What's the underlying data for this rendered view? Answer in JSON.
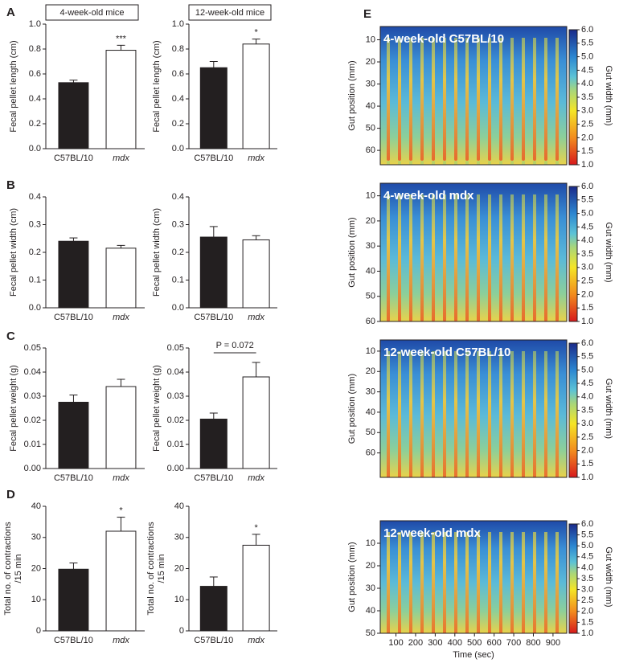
{
  "chart_data": [
    {
      "type": "bar",
      "panel": "A",
      "group": "4-week-old mice",
      "ylabel": "Fecal pellet length (cm)",
      "categories": [
        "C57BL/10",
        "mdx"
      ],
      "values": [
        0.53,
        0.79
      ],
      "errors": [
        0.02,
        0.04
      ],
      "colors": [
        "#231f20",
        "#ffffff"
      ],
      "annotation": "***",
      "ylim": [
        0,
        1
      ],
      "yticks": [
        {
          "value": 0,
          "label": "0.0"
        },
        0.2,
        0.4,
        0.6,
        0.8,
        {
          "value": 1,
          "label": "1.0"
        }
      ]
    },
    {
      "type": "bar",
      "group": "12-week-old mice",
      "ylabel": "Fecal pellet length (cm)",
      "categories": [
        "C57BL/10",
        "mdx"
      ],
      "values": [
        0.65,
        0.84
      ],
      "errors": [
        0.05,
        0.04
      ],
      "colors": [
        "#231f20",
        "#ffffff"
      ],
      "annotation": "*",
      "ylim": [
        0,
        1
      ],
      "yticks": [
        {
          "value": 0,
          "label": "0.0"
        },
        0.2,
        0.4,
        0.6,
        0.8,
        {
          "value": 1,
          "label": "1.0"
        }
      ]
    },
    {
      "type": "bar",
      "panel": "B",
      "ylabel": "Fecal pellet width (cm)",
      "categories": [
        "C57BL/10",
        "mdx"
      ],
      "values": [
        0.24,
        0.215
      ],
      "errors": [
        0.012,
        0.01
      ],
      "colors": [
        "#231f20",
        "#ffffff"
      ],
      "ylim": [
        0,
        0.4
      ],
      "yticks": [
        {
          "value": 0,
          "label": "0.0"
        },
        0.1,
        0.2,
        0.3,
        0.4
      ]
    },
    {
      "type": "bar",
      "ylabel": "Fecal pellet width (cm)",
      "categories": [
        "C57BL/10",
        "mdx"
      ],
      "values": [
        0.255,
        0.245
      ],
      "errors": [
        0.038,
        0.015
      ],
      "colors": [
        "#231f20",
        "#ffffff"
      ],
      "ylim": [
        0,
        0.4
      ],
      "yticks": [
        {
          "value": 0,
          "label": "0.0"
        },
        0.1,
        0.2,
        0.3,
        0.4
      ]
    },
    {
      "type": "bar",
      "panel": "C",
      "ylabel": "Fecal pellet weight (g)",
      "categories": [
        "C57BL/10",
        "mdx"
      ],
      "values": [
        0.0275,
        0.034
      ],
      "errors": [
        0.003,
        0.003
      ],
      "colors": [
        "#231f20",
        "#ffffff"
      ],
      "ylim": [
        0,
        0.05
      ],
      "yticks": [
        {
          "value": 0,
          "label": "0.00"
        },
        0.01,
        0.02,
        0.03,
        0.04,
        0.05
      ]
    },
    {
      "type": "bar",
      "ylabel": "Fecal pellet weight (g)",
      "categories": [
        "C57BL/10",
        "mdx"
      ],
      "values": [
        0.0205,
        0.038
      ],
      "errors": [
        0.0025,
        0.006
      ],
      "colors": [
        "#231f20",
        "#ffffff"
      ],
      "bracket_annotation": "P = 0.072",
      "ylim": [
        0,
        0.05
      ],
      "yticks": [
        {
          "value": 0,
          "label": "0.00"
        },
        0.01,
        0.02,
        0.03,
        0.04,
        0.05
      ]
    },
    {
      "type": "bar",
      "panel": "D",
      "ylabel": [
        "Total no. of contractions",
        "/15 min"
      ],
      "categories": [
        "C57BL/10",
        "mdx"
      ],
      "values": [
        19.8,
        32
      ],
      "errors": [
        2,
        4.5
      ],
      "colors": [
        "#231f20",
        "#ffffff"
      ],
      "annotation": "*",
      "ylim": [
        0,
        40
      ],
      "yticks": [
        0,
        10,
        20,
        30,
        40
      ]
    },
    {
      "type": "bar",
      "ylabel": [
        "Total no. of contractions",
        "/15 min"
      ],
      "categories": [
        "C57BL/10",
        "mdx"
      ],
      "values": [
        14.3,
        27.5
      ],
      "errors": [
        3,
        3.5
      ],
      "colors": [
        "#231f20",
        "#ffffff"
      ],
      "annotation": "*",
      "ylim": [
        0,
        40
      ],
      "yticks": [
        0,
        10,
        20,
        30,
        40
      ]
    },
    {
      "type": "heatmap",
      "panel": "E",
      "title": "4-week-old C57BL/10",
      "ylabel": "Gut position (mm)",
      "colorbar_label": "Gut width (mm)",
      "ylim": [
        4,
        66.5
      ],
      "yticks": [
        10,
        20,
        30,
        40,
        50,
        60
      ],
      "clim": [
        1,
        6
      ],
      "cticks": [
        {
          "value": 1,
          "label": "1.0"
        },
        1.5,
        {
          "value": 2,
          "label": "2.0"
        },
        2.5,
        {
          "value": 3,
          "label": "3.0"
        },
        3.5,
        {
          "value": 4,
          "label": "4.0"
        },
        4.5,
        {
          "value": 5,
          "label": "5.0"
        },
        5.5,
        {
          "value": 6,
          "label": "6.0"
        }
      ]
    },
    {
      "type": "heatmap",
      "title": "4-week-old mdx",
      "ylabel": "Gut position (mm)",
      "colorbar_label": "Gut width (mm)",
      "ylim": [
        5,
        60
      ],
      "yticks": [
        10,
        20,
        30,
        40,
        50,
        60
      ],
      "clim": [
        1,
        6
      ],
      "cticks": [
        {
          "value": 1,
          "label": "1.0"
        },
        1.5,
        {
          "value": 2,
          "label": "2.0"
        },
        2.5,
        {
          "value": 3,
          "label": "3.0"
        },
        3.5,
        {
          "value": 4,
          "label": "4.0"
        },
        4.5,
        {
          "value": 5,
          "label": "5.0"
        },
        5.5,
        {
          "value": 6,
          "label": "6.0"
        }
      ]
    },
    {
      "type": "heatmap",
      "title": "12-week-old C57BL/10",
      "ylabel": "Gut position (mm)",
      "colorbar_label": "Gut width (mm)",
      "ylim": [
        4.5,
        72
      ],
      "yticks": [
        10,
        20,
        30,
        40,
        50,
        60
      ],
      "clim": [
        1,
        6
      ],
      "cticks": [
        {
          "value": 1,
          "label": "1.0"
        },
        1.5,
        {
          "value": 2,
          "label": "2.0"
        },
        2.5,
        {
          "value": 3,
          "label": "3.0"
        },
        3.5,
        {
          "value": 4,
          "label": "4.0"
        },
        4.5,
        {
          "value": 5,
          "label": "5.0"
        },
        5.5,
        {
          "value": 6,
          "label": "6.0"
        }
      ]
    },
    {
      "type": "heatmap",
      "title": "12-week-old mdx",
      "ylabel": "Gut position (mm)",
      "colorbar_label": "Gut width (mm)",
      "xlabel": "Time (sec)",
      "ylim": [
        0,
        50
      ],
      "yticks": [
        10,
        20,
        30,
        40,
        50
      ],
      "xlim": [
        20,
        970
      ],
      "xticks": [
        100,
        200,
        300,
        400,
        500,
        600,
        700,
        800,
        900
      ],
      "clim": [
        1,
        6
      ],
      "cticks": [
        {
          "value": 1,
          "label": "1.0"
        },
        1.5,
        {
          "value": 2,
          "label": "2.0"
        },
        2.5,
        {
          "value": 3,
          "label": "3.0"
        },
        3.5,
        {
          "value": 4,
          "label": "4.0"
        },
        4.5,
        {
          "value": 5,
          "label": "5.0"
        },
        5.5,
        {
          "value": 6,
          "label": "6.0"
        }
      ]
    }
  ]
}
